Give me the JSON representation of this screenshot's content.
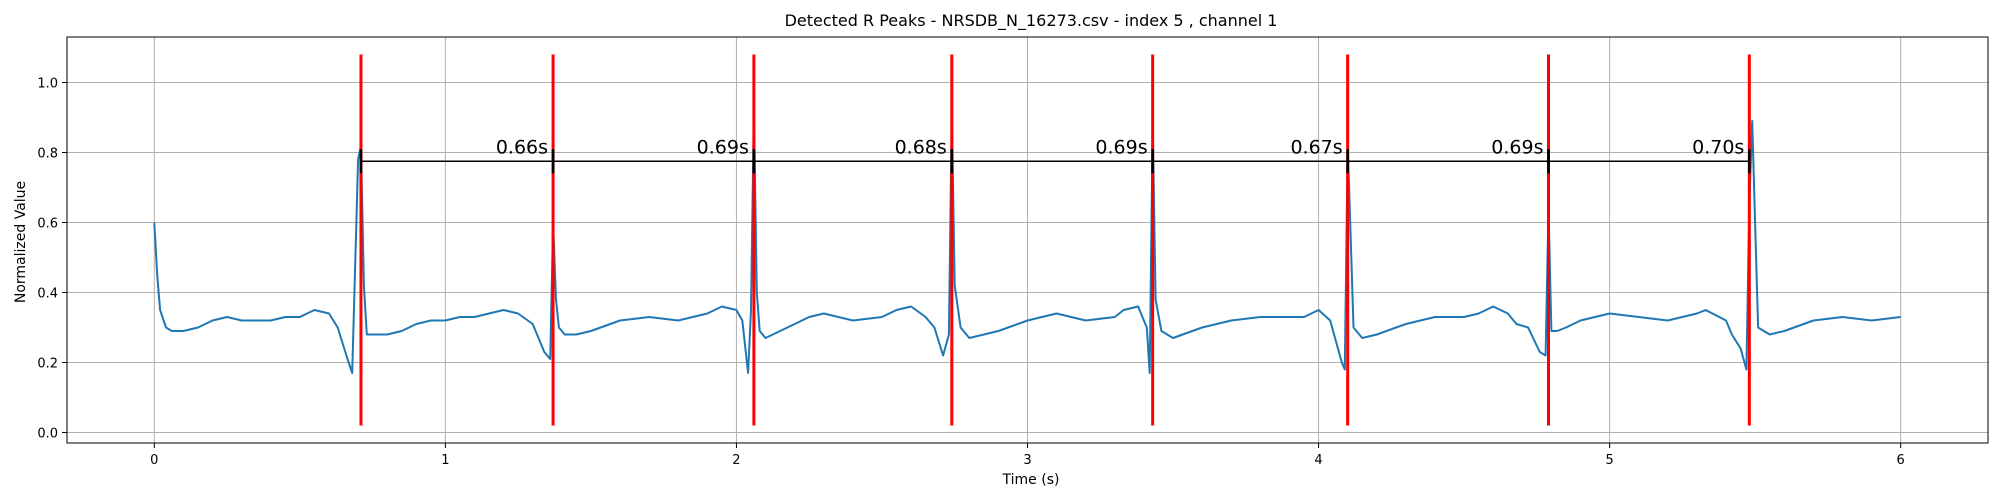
{
  "chart_data": {
    "type": "line",
    "title": "Detected R Peaks - NRSDB_N_16273.csv - index 5 , channel 1",
    "xlabel": "Time (s)",
    "ylabel": "Normalized Value",
    "xlim": [
      -0.3,
      6.3
    ],
    "ylim": [
      -0.03,
      1.13
    ],
    "xticks": [
      0,
      1,
      2,
      3,
      4,
      5,
      6
    ],
    "xtick_labels": [
      "0",
      "1",
      "2",
      "3",
      "4",
      "5",
      "6"
    ],
    "yticks": [
      0.0,
      0.2,
      0.4,
      0.6,
      0.8,
      1.0
    ],
    "ytick_labels": [
      "0.0",
      "0.2",
      "0.4",
      "0.6",
      "0.8",
      "1.0"
    ],
    "grid": true,
    "signal_color": "#1f77b4",
    "peak_color": "#ff0000",
    "bracket_color": "#000000",
    "peak_line_range": [
      0.02,
      1.08
    ],
    "bracket_y": 0.775,
    "signal": {
      "x": [
        0.0,
        0.01,
        0.02,
        0.04,
        0.06,
        0.1,
        0.15,
        0.2,
        0.25,
        0.3,
        0.35,
        0.4,
        0.45,
        0.5,
        0.55,
        0.6,
        0.63,
        0.66,
        0.68,
        0.7,
        0.71,
        0.72,
        0.73,
        0.75,
        0.8,
        0.85,
        0.9,
        0.95,
        1.0,
        1.05,
        1.1,
        1.15,
        1.2,
        1.25,
        1.3,
        1.34,
        1.36,
        1.37,
        1.38,
        1.39,
        1.41,
        1.45,
        1.5,
        1.6,
        1.7,
        1.8,
        1.9,
        1.95,
        2.0,
        2.02,
        2.04,
        2.05,
        2.06,
        2.07,
        2.08,
        2.1,
        2.15,
        2.2,
        2.25,
        2.3,
        2.4,
        2.5,
        2.55,
        2.6,
        2.65,
        2.68,
        2.71,
        2.73,
        2.74,
        2.75,
        2.77,
        2.8,
        2.9,
        3.0,
        3.1,
        3.2,
        3.3,
        3.33,
        3.38,
        3.41,
        3.42,
        3.43,
        3.44,
        3.46,
        3.5,
        3.6,
        3.7,
        3.8,
        3.9,
        3.95,
        4.0,
        4.04,
        4.08,
        4.09,
        4.1,
        4.12,
        4.15,
        4.2,
        4.3,
        4.4,
        4.5,
        4.55,
        4.6,
        4.65,
        4.68,
        4.72,
        4.76,
        4.78,
        4.79,
        4.8,
        4.82,
        4.85,
        4.9,
        5.0,
        5.1,
        5.2,
        5.3,
        5.33,
        5.4,
        5.42,
        5.45,
        5.47,
        5.48,
        5.49,
        5.51,
        5.55,
        5.6,
        5.7,
        5.8,
        5.9,
        6.0
      ],
      "y": [
        0.6,
        0.45,
        0.35,
        0.3,
        0.29,
        0.29,
        0.3,
        0.32,
        0.33,
        0.32,
        0.32,
        0.32,
        0.33,
        0.33,
        0.35,
        0.34,
        0.3,
        0.22,
        0.17,
        0.78,
        0.82,
        0.42,
        0.28,
        0.28,
        0.28,
        0.29,
        0.31,
        0.32,
        0.32,
        0.33,
        0.33,
        0.34,
        0.35,
        0.34,
        0.31,
        0.23,
        0.21,
        0.6,
        0.38,
        0.3,
        0.28,
        0.28,
        0.29,
        0.32,
        0.33,
        0.32,
        0.34,
        0.36,
        0.35,
        0.32,
        0.17,
        0.35,
        0.93,
        0.4,
        0.29,
        0.27,
        0.29,
        0.31,
        0.33,
        0.34,
        0.32,
        0.33,
        0.35,
        0.36,
        0.33,
        0.3,
        0.22,
        0.28,
        0.92,
        0.42,
        0.3,
        0.27,
        0.29,
        0.32,
        0.34,
        0.32,
        0.33,
        0.35,
        0.36,
        0.3,
        0.17,
        0.89,
        0.38,
        0.29,
        0.27,
        0.3,
        0.32,
        0.33,
        0.33,
        0.33,
        0.35,
        0.32,
        0.2,
        0.18,
        0.83,
        0.3,
        0.27,
        0.28,
        0.31,
        0.33,
        0.33,
        0.34,
        0.36,
        0.34,
        0.31,
        0.3,
        0.23,
        0.22,
        0.64,
        0.29,
        0.29,
        0.3,
        0.32,
        0.34,
        0.33,
        0.32,
        0.34,
        0.35,
        0.32,
        0.28,
        0.24,
        0.18,
        0.65,
        0.89,
        0.3,
        0.28,
        0.29,
        0.32,
        0.33,
        0.32,
        0.33
      ]
    },
    "r_peaks": [
      0.71,
      1.37,
      2.06,
      2.74,
      3.43,
      4.1,
      4.79,
      5.48
    ],
    "rr_intervals": [
      {
        "label": "0.66s",
        "start": 0.71,
        "end": 1.37
      },
      {
        "label": "0.69s",
        "start": 1.37,
        "end": 2.06
      },
      {
        "label": "0.68s",
        "start": 2.06,
        "end": 2.74
      },
      {
        "label": "0.69s",
        "start": 2.74,
        "end": 3.43
      },
      {
        "label": "0.67s",
        "start": 3.43,
        "end": 4.1
      },
      {
        "label": "0.69s",
        "start": 4.1,
        "end": 4.79
      },
      {
        "label": "0.70s",
        "start": 4.79,
        "end": 5.48
      }
    ]
  }
}
